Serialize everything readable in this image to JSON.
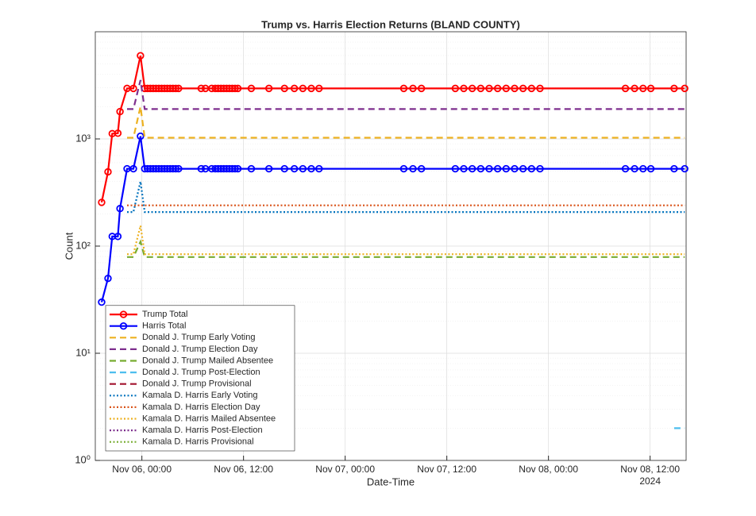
{
  "chart_data": {
    "type": "line",
    "title": "Trump vs. Harris Election Returns (BLAND COUNTY)",
    "xlabel": "Date-Time",
    "ylabel": "Count",
    "ylog": true,
    "grid": true,
    "minor_grid": true,
    "xlim": [
      "2024-11-05T18:30",
      "2024-11-08T16:15"
    ],
    "xticks": [
      {
        "value": "2024-11-06T00:00",
        "label": "Nov 06, 00:00"
      },
      {
        "value": "2024-11-06T12:00",
        "label": "Nov 06, 12:00"
      },
      {
        "value": "2024-11-07T00:00",
        "label": "Nov 07, 00:00"
      },
      {
        "value": "2024-11-07T12:00",
        "label": "Nov 07, 12:00"
      },
      {
        "value": "2024-11-08T00:00",
        "label": "Nov 08, 00:00"
      },
      {
        "value": "2024-11-08T12:00",
        "label": "Nov 08, 12:00"
      }
    ],
    "x_secondary_label": "2024",
    "ylim": [
      1,
      10000
    ],
    "yticks": [
      {
        "value": 1,
        "label": "10⁰"
      },
      {
        "value": 10,
        "label": "10¹"
      },
      {
        "value": 100,
        "label": "10²"
      },
      {
        "value": 1000,
        "label": "10³"
      }
    ],
    "legend": "lower left",
    "x": [
      "2024-11-05T19:15",
      "2024-11-05T20:00",
      "2024-11-05T20:30",
      "2024-11-05T21:10",
      "2024-11-05T21:25",
      "2024-11-05T22:15",
      "2024-11-05T23:00",
      "2024-11-05T23:50",
      "2024-11-06T00:20",
      "2024-11-06T00:40",
      "2024-11-06T01:00",
      "2024-11-06T01:20",
      "2024-11-06T01:40",
      "2024-11-06T02:00",
      "2024-11-06T02:20",
      "2024-11-06T02:40",
      "2024-11-06T03:00",
      "2024-11-06T03:20",
      "2024-11-06T03:40",
      "2024-11-06T04:00",
      "2024-11-06T04:20",
      "2024-11-06T07:00",
      "2024-11-06T07:30",
      "2024-11-06T08:15",
      "2024-11-06T08:40",
      "2024-11-06T09:00",
      "2024-11-06T09:20",
      "2024-11-06T09:40",
      "2024-11-06T10:00",
      "2024-11-06T10:20",
      "2024-11-06T10:40",
      "2024-11-06T11:00",
      "2024-11-06T11:20",
      "2024-11-06T12:55",
      "2024-11-06T15:00",
      "2024-11-06T16:50",
      "2024-11-06T18:00",
      "2024-11-06T19:00",
      "2024-11-06T20:00",
      "2024-11-06T20:55",
      "2024-11-07T06:55",
      "2024-11-07T08:00",
      "2024-11-07T09:00",
      "2024-11-07T13:00",
      "2024-11-07T14:00",
      "2024-11-07T15:00",
      "2024-11-07T16:00",
      "2024-11-07T17:00",
      "2024-11-07T18:00",
      "2024-11-07T19:00",
      "2024-11-07T20:00",
      "2024-11-07T21:00",
      "2024-11-07T22:00",
      "2024-11-07T23:00",
      "2024-11-08T09:05",
      "2024-11-08T10:10",
      "2024-11-08T11:10",
      "2024-11-08T12:05",
      "2024-11-08T14:50",
      "2024-11-08T16:05"
    ],
    "series": [
      {
        "name": "Trump Total",
        "color": "#ff0000",
        "style": "solid",
        "marker": true,
        "values": [
          256,
          493,
          1120,
          1130,
          1800,
          2960,
          2960,
          5980,
          2960,
          2960,
          2960,
          2960,
          2960,
          2960,
          2960,
          2960,
          2960,
          2960,
          2960,
          2960,
          2960,
          2960,
          2960,
          2960,
          2960,
          2960,
          2960,
          2960,
          2960,
          2960,
          2960,
          2960,
          2960,
          2960,
          2960,
          2960,
          2960,
          2960,
          2960,
          2960,
          2960,
          2960,
          2960,
          2960,
          2960,
          2960,
          2960,
          2960,
          2960,
          2960,
          2960,
          2960,
          2960,
          2960,
          2960,
          2960,
          2960,
          2960,
          2960,
          2960
        ]
      },
      {
        "name": "Harris Total",
        "color": "#0000ff",
        "style": "solid",
        "marker": true,
        "values": [
          30,
          50,
          123,
          123,
          224,
          527,
          527,
          1060,
          527,
          527,
          527,
          527,
          527,
          527,
          527,
          527,
          527,
          527,
          527,
          527,
          527,
          527,
          527,
          527,
          527,
          527,
          527,
          527,
          527,
          527,
          527,
          527,
          527,
          527,
          527,
          527,
          527,
          527,
          527,
          527,
          527,
          527,
          527,
          527,
          527,
          527,
          527,
          527,
          527,
          527,
          527,
          527,
          527,
          527,
          527,
          527,
          527,
          527,
          527,
          527
        ]
      },
      {
        "name": "Donald J. Trump Early Voting",
        "color": "#EDB120",
        "style": "dashed",
        "x": [
          "2024-11-05T22:15",
          "2024-11-05T23:00",
          "2024-11-05T23:50",
          "2024-11-06T00:20",
          "2024-11-08T16:05"
        ],
        "values": [
          1026,
          1026,
          2000,
          1026,
          1026
        ]
      },
      {
        "name": "Donald J. Trump Election Day",
        "color": "#7E2F8E",
        "style": "dashed",
        "x": [
          "2024-11-05T22:15",
          "2024-11-05T23:00",
          "2024-11-05T23:50",
          "2024-11-06T00:20",
          "2024-11-08T16:05"
        ],
        "values": [
          1900,
          1900,
          3540,
          1900,
          1900
        ]
      },
      {
        "name": "Donald J. Trump Mailed Absentee",
        "color": "#77AC30",
        "style": "dashed",
        "x": [
          "2024-11-05T22:15",
          "2024-11-05T23:00",
          "2024-11-05T23:50",
          "2024-11-06T00:20",
          "2024-11-08T16:05"
        ],
        "values": [
          79,
          79,
          110,
          79,
          79
        ]
      },
      {
        "name": "Donald J. Trump Post-Election",
        "color": "#4DBEEE",
        "style": "dashed",
        "x": [
          "2024-11-08T14:50",
          "2024-11-08T16:05"
        ],
        "values": [
          2,
          2
        ]
      },
      {
        "name": "Donald J. Trump Provisional",
        "color": "#A2142F",
        "style": "dashed",
        "x": [],
        "values": []
      },
      {
        "name": "Kamala D. Harris Early Voting",
        "color": "#0072BD",
        "style": "dotted",
        "x": [
          "2024-11-05T22:15",
          "2024-11-05T23:00",
          "2024-11-05T23:50",
          "2024-11-06T00:20",
          "2024-11-08T16:05"
        ],
        "values": [
          208,
          208,
          400,
          208,
          208
        ]
      },
      {
        "name": "Kamala D. Harris Election Day",
        "color": "#D95319",
        "style": "dotted",
        "x": [
          "2024-11-05T22:15",
          "2024-11-05T23:00",
          "2024-11-05T23:50",
          "2024-11-06T00:20",
          "2024-11-08T16:05"
        ],
        "values": [
          240,
          240,
          240,
          240,
          240
        ]
      },
      {
        "name": "Kamala D. Harris Mailed Absentee",
        "color": "#EDB120",
        "style": "dotted",
        "x": [
          "2024-11-05T22:15",
          "2024-11-05T23:00",
          "2024-11-05T23:50",
          "2024-11-06T00:20",
          "2024-11-08T16:05"
        ],
        "values": [
          84,
          84,
          155,
          84,
          84
        ]
      },
      {
        "name": "Kamala D. Harris Post-Election",
        "color": "#7E2F8E",
        "style": "dotted",
        "x": [],
        "values": []
      },
      {
        "name": "Kamala D. Harris Provisional",
        "color": "#77AC30",
        "style": "dotted",
        "x": [],
        "values": []
      }
    ]
  }
}
